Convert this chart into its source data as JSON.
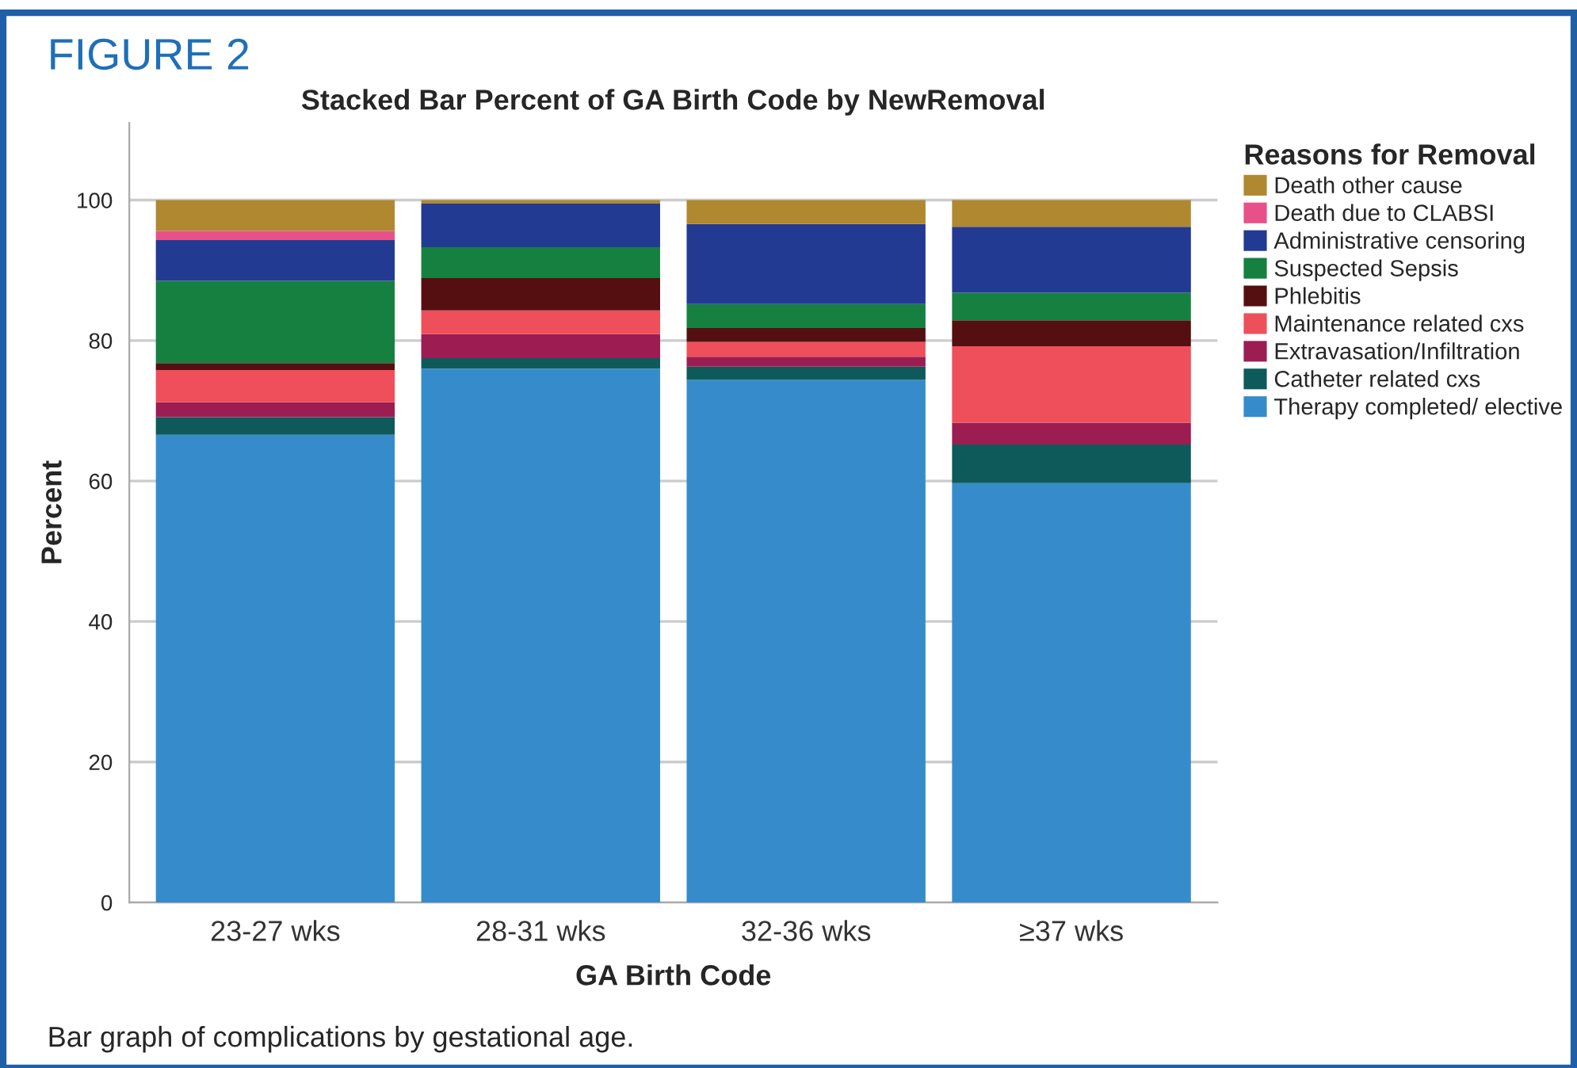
{
  "chart_data": {
    "type": "bar",
    "stacked": true,
    "title": "Stacked Bar Percent of GA Birth Code by NewRemoval",
    "xlabel": "GA Birth Code",
    "ylabel": "Percent",
    "legend_title": "Reasons for Removal",
    "annotations": [
      "FIGURE 2",
      "Bar graph of complications by gestational age."
    ],
    "categories": [
      "23-27 wks",
      "28-31 wks",
      "32-36 wks",
      "≥37 wks"
    ],
    "series": [
      {
        "name": "Therapy completed/ elective",
        "color": "#368ccb",
        "values": [
          66.6,
          76.0,
          74.4,
          59.7
        ]
      },
      {
        "name": "Catheter related cxs",
        "color": "#0e5a5a",
        "values": [
          2.5,
          1.5,
          1.9,
          5.5
        ]
      },
      {
        "name": "Extravasation/Infiltration",
        "color": "#9c1d52",
        "values": [
          2.1,
          3.4,
          1.4,
          3.1
        ]
      },
      {
        "name": "Maintenance related cxs",
        "color": "#ef4f5a",
        "values": [
          4.6,
          3.4,
          2.1,
          10.9
        ]
      },
      {
        "name": "Phlebitis",
        "color": "#550f10",
        "values": [
          1.0,
          4.6,
          2.0,
          3.7
        ]
      },
      {
        "name": "Suspected Sepsis",
        "color": "#168040",
        "values": [
          11.7,
          4.4,
          3.4,
          3.9
        ]
      },
      {
        "name": "Administrative censoring",
        "color": "#233a93",
        "values": [
          5.8,
          6.2,
          11.4,
          9.4
        ]
      },
      {
        "name": "Death due to CLABSI",
        "color": "#e8508a",
        "values": [
          1.3,
          0,
          0,
          0
        ]
      },
      {
        "name": "Death other cause",
        "color": "#b08830",
        "values": [
          4.4,
          0.5,
          3.4,
          3.8
        ]
      }
    ],
    "ylim": [
      0,
      111
    ],
    "yticks": [
      0,
      20,
      40,
      60,
      80,
      100
    ],
    "grid": "y",
    "legend": "right"
  }
}
